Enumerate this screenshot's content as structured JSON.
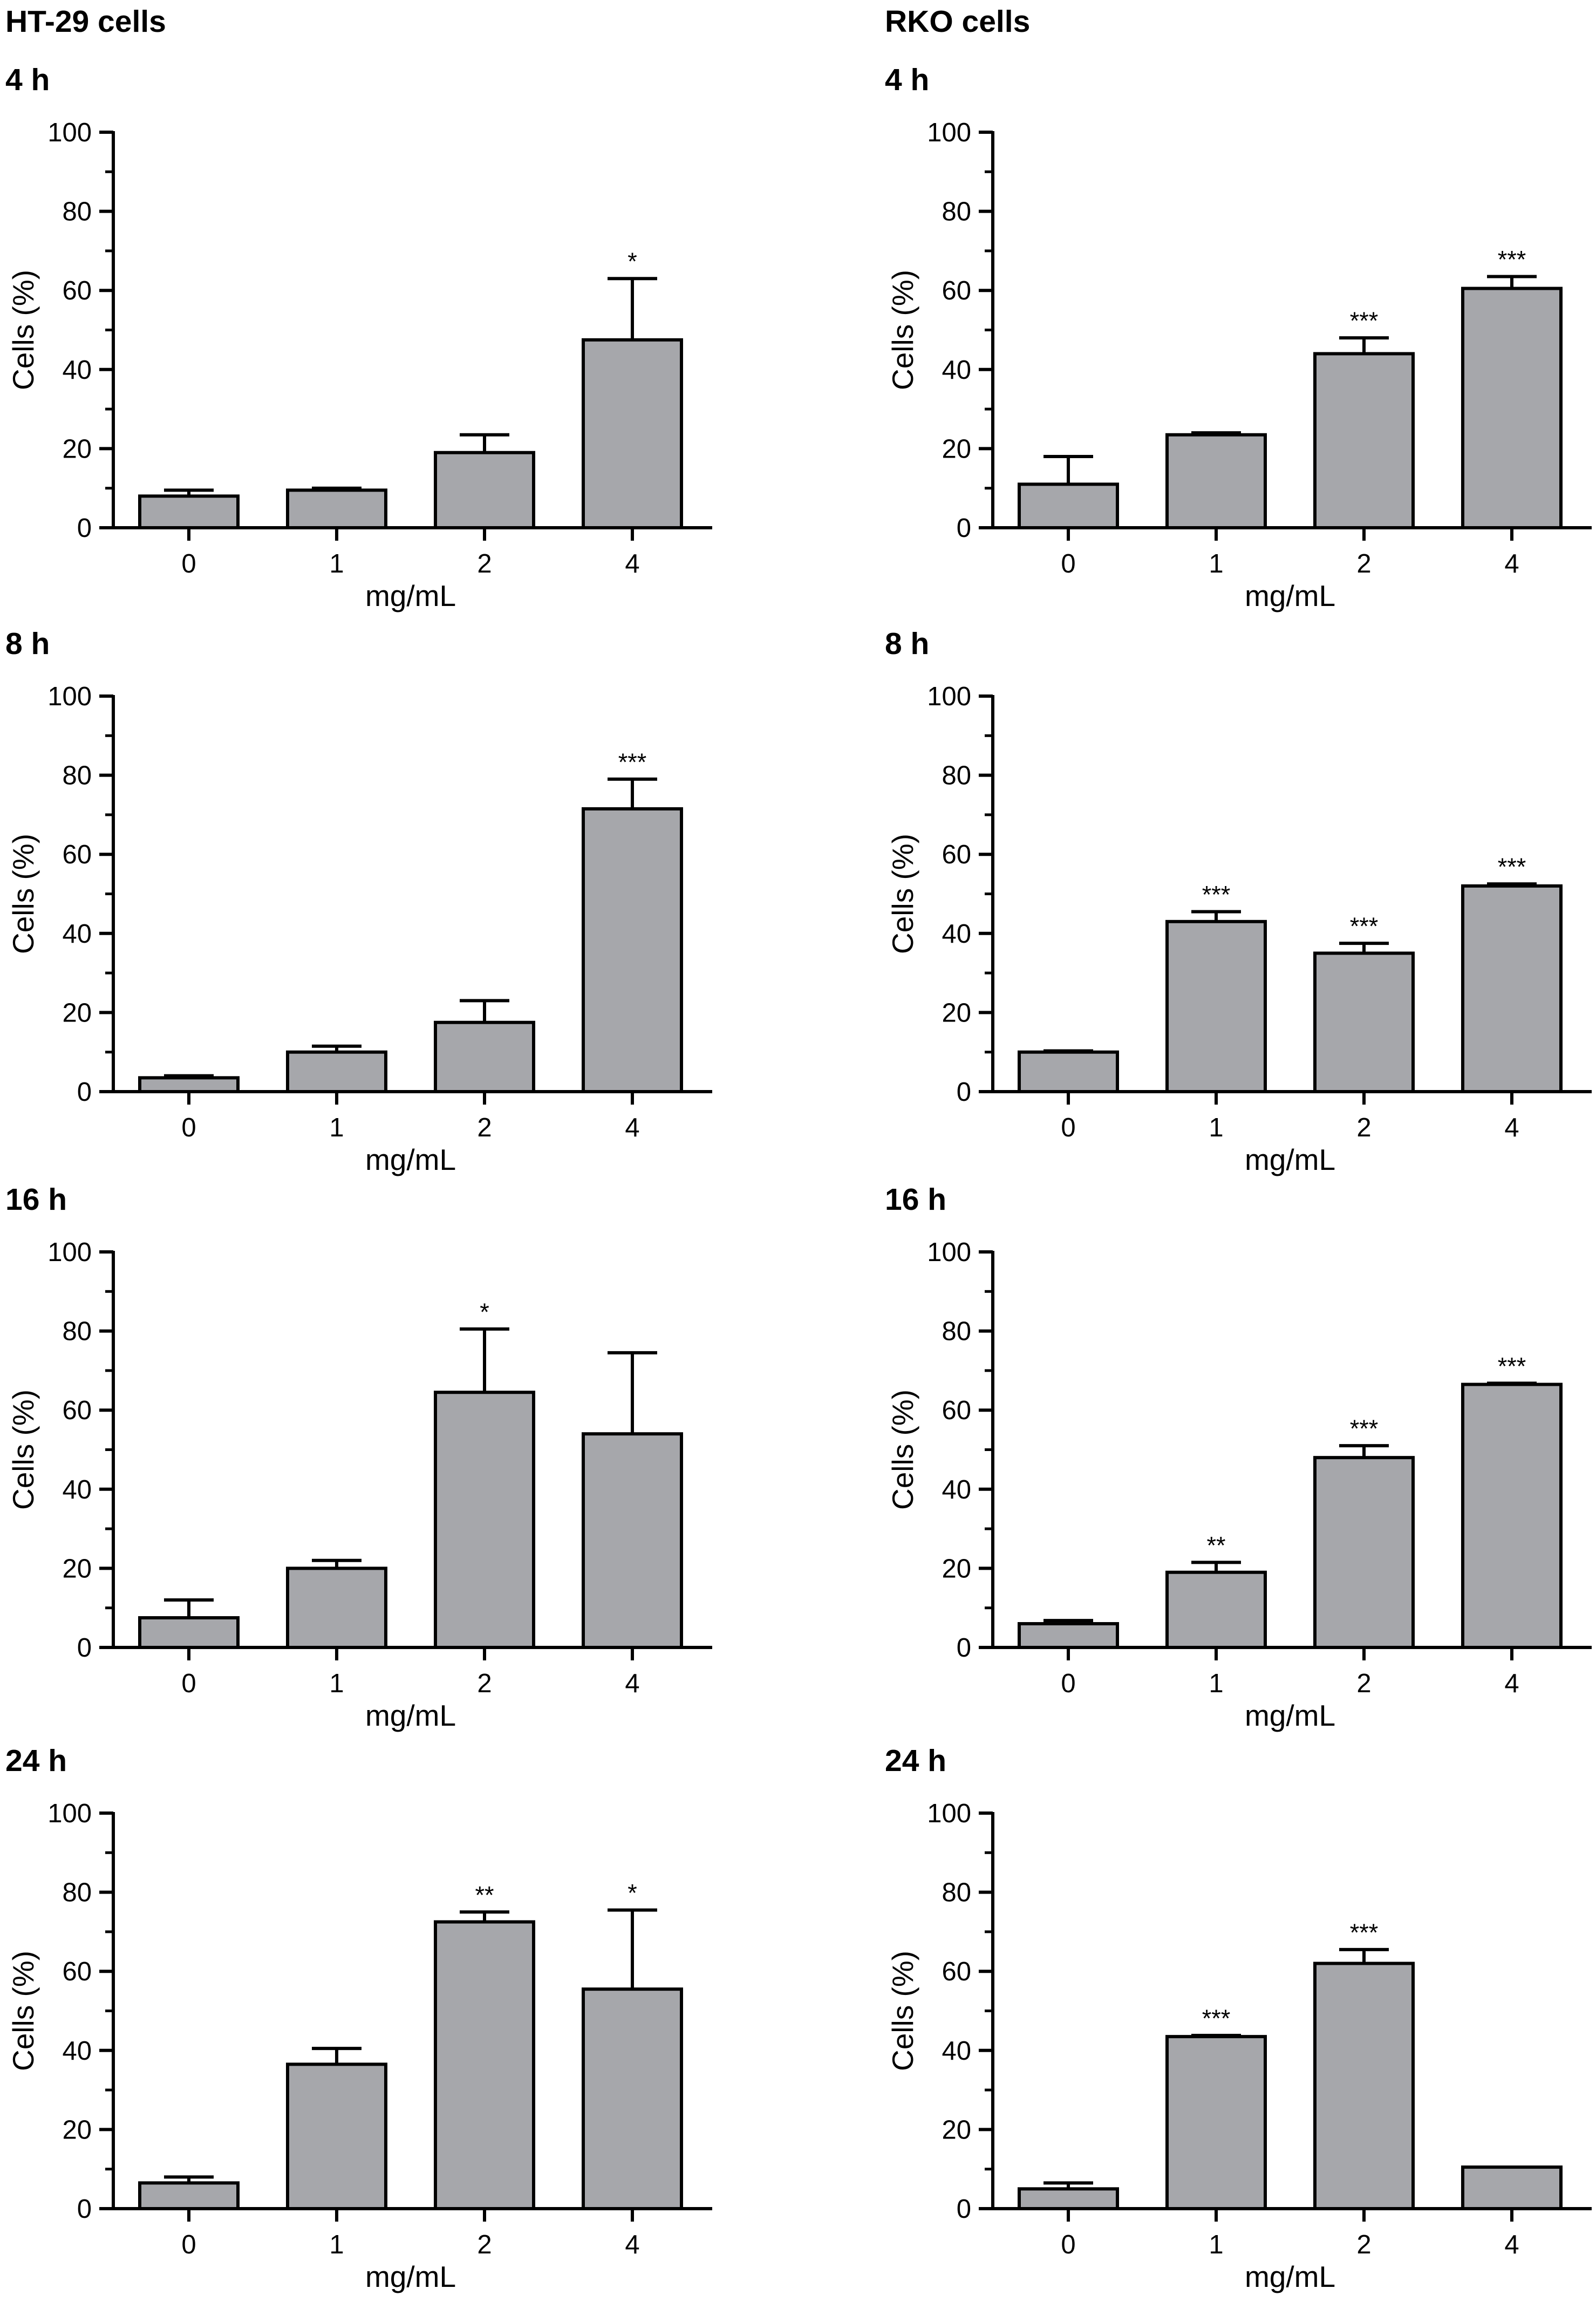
{
  "columns": [
    {
      "title": "HT-29 cells"
    },
    {
      "title": "RKO cells"
    }
  ],
  "chart_data": [
    {
      "type": "bar",
      "cell_line": "HT-29 cells",
      "title": "4 h",
      "xlabel": "mg/mL",
      "ylabel": "Cells (%)",
      "categories": [
        "0",
        "1",
        "2",
        "4"
      ],
      "values": [
        8,
        9.5,
        19,
        47.5
      ],
      "errors": [
        1.5,
        0.5,
        4.5,
        15.5
      ],
      "significance": [
        "",
        "",
        "",
        "*"
      ],
      "ylim": [
        0,
        100
      ],
      "yticks": [
        "0",
        "20",
        "40",
        "60",
        "80",
        "100"
      ],
      "color": "#a6a7ab"
    },
    {
      "type": "bar",
      "cell_line": "HT-29 cells",
      "title": "8 h",
      "xlabel": "mg/mL",
      "ylabel": "Cells (%)",
      "categories": [
        "0",
        "1",
        "2",
        "4"
      ],
      "values": [
        3.5,
        10,
        17.5,
        71.5
      ],
      "errors": [
        0.5,
        1.5,
        5.5,
        7.5
      ],
      "significance": [
        "",
        "",
        "",
        "***"
      ],
      "ylim": [
        0,
        100
      ],
      "yticks": [
        "0",
        "20",
        "40",
        "60",
        "80",
        "100"
      ],
      "color": "#a6a7ab"
    },
    {
      "type": "bar",
      "cell_line": "HT-29 cells",
      "title": "16 h",
      "xlabel": "mg/mL",
      "ylabel": "Cells (%)",
      "categories": [
        "0",
        "1",
        "2",
        "4"
      ],
      "values": [
        7.5,
        20,
        64.5,
        54
      ],
      "errors": [
        4.5,
        2,
        16,
        20.5
      ],
      "significance": [
        "",
        "",
        "*",
        ""
      ],
      "ylim": [
        0,
        100
      ],
      "yticks": [
        "0",
        "20",
        "40",
        "60",
        "80",
        "100"
      ],
      "color": "#a6a7ab"
    },
    {
      "type": "bar",
      "cell_line": "HT-29 cells",
      "title": "24 h",
      "xlabel": "mg/mL",
      "ylabel": "Cells (%)",
      "categories": [
        "0",
        "1",
        "2",
        "4"
      ],
      "values": [
        6.5,
        36.5,
        72.5,
        55.5
      ],
      "errors": [
        1.5,
        4,
        2.5,
        20
      ],
      "significance": [
        "",
        "",
        "**",
        "*"
      ],
      "ylim": [
        0,
        100
      ],
      "yticks": [
        "0",
        "20",
        "40",
        "60",
        "80",
        "100"
      ],
      "color": "#a6a7ab"
    },
    {
      "type": "bar",
      "cell_line": "RKO cells",
      "title": "4 h",
      "xlabel": "mg/mL",
      "ylabel": "Cells (%)",
      "categories": [
        "0",
        "1",
        "2",
        "4"
      ],
      "values": [
        11,
        23.5,
        44,
        60.5
      ],
      "errors": [
        7,
        0.5,
        4,
        3
      ],
      "significance": [
        "",
        "",
        "***",
        "***"
      ],
      "ylim": [
        0,
        100
      ],
      "yticks": [
        "0",
        "20",
        "40",
        "60",
        "80",
        "100"
      ],
      "color": "#a6a7ab"
    },
    {
      "type": "bar",
      "cell_line": "RKO cells",
      "title": "8 h",
      "xlabel": "mg/mL",
      "ylabel": "Cells (%)",
      "categories": [
        "0",
        "1",
        "2",
        "4"
      ],
      "values": [
        10,
        43,
        35,
        52
      ],
      "errors": [
        0.3,
        2.5,
        2.5,
        0.5
      ],
      "significance": [
        "",
        "***",
        "***",
        "***"
      ],
      "ylim": [
        0,
        100
      ],
      "yticks": [
        "0",
        "20",
        "40",
        "60",
        "80",
        "100"
      ],
      "color": "#a6a7ab"
    },
    {
      "type": "bar",
      "cell_line": "RKO cells",
      "title": "16 h",
      "xlabel": "mg/mL",
      "ylabel": "Cells (%)",
      "categories": [
        "0",
        "1",
        "2",
        "4"
      ],
      "values": [
        6,
        19,
        48,
        66.5
      ],
      "errors": [
        0.8,
        2.5,
        3,
        0.3
      ],
      "significance": [
        "",
        "**",
        "***",
        "***"
      ],
      "ylim": [
        0,
        100
      ],
      "yticks": [
        "0",
        "20",
        "40",
        "60",
        "80",
        "100"
      ],
      "color": "#a6a7ab"
    },
    {
      "type": "bar",
      "cell_line": "RKO cells",
      "title": "24 h",
      "xlabel": "mg/mL",
      "ylabel": "Cells (%)",
      "categories": [
        "0",
        "1",
        "2",
        "4"
      ],
      "values": [
        5,
        43.5,
        62,
        10.5
      ],
      "errors": [
        1.5,
        0.3,
        3.5,
        0
      ],
      "significance": [
        "",
        "***",
        "***",
        ""
      ],
      "ylim": [
        0,
        100
      ],
      "yticks": [
        "0",
        "20",
        "40",
        "60",
        "80",
        "100"
      ],
      "color": "#a6a7ab"
    }
  ]
}
